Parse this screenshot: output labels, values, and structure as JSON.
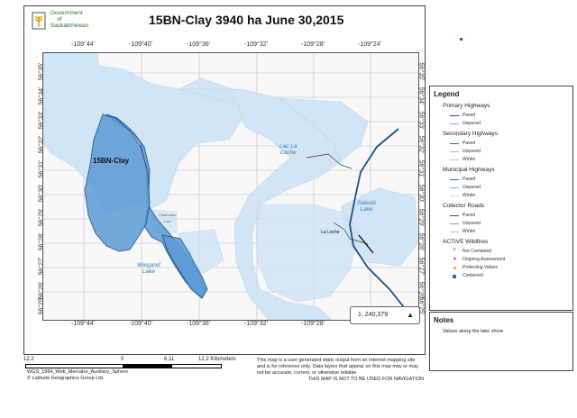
{
  "header": {
    "logo_text": "Government\n    of\nSaskatchewan",
    "map_title": "15BN-Clay  3940 ha June 30,2015"
  },
  "graticule": {
    "longitudes": [
      "-109°44'",
      "-109°40'",
      "-109°36'",
      "-109°32'",
      "-109°28'",
      "-109°24'"
    ],
    "longitudes_bottom": [
      "-109°44'",
      "-109°40'",
      "-109°36'",
      "-109°32'",
      "-109°28'"
    ],
    "latitudes": [
      "56°35'",
      "56°34'",
      "56°33'",
      "56°32'",
      "56°31'",
      "56°30'",
      "56°29'",
      "56°28'",
      "56°27'",
      "56°26'",
      "56°25'"
    ]
  },
  "map": {
    "fire_label": "15BN-Clay",
    "lake_labels": {
      "lac_la_loche": "Lac La\nLoche",
      "saleski": "Saleski\nLake",
      "wiegand": "Wiegand\nLake",
      "small": "Clearwater\nLake"
    },
    "town_label": "La Loche",
    "scale": "1: 240,379",
    "north": "N",
    "colors": {
      "water": "#cfe3f5",
      "fire_fill": "#5b9bd5",
      "fire_stroke": "#1f4e8c",
      "primary_highway": "#1f4e8c"
    }
  },
  "scalebar": {
    "ticks": [
      "12.2",
      "0",
      "6.11",
      "12.2 Kilometers"
    ]
  },
  "credits": {
    "line1": "WGS_1984_Web_Mercator_Auxiliary_Sphere",
    "line2": "© Latitude Geographics Group Ltd."
  },
  "disclaimer": {
    "text": "This map is a user generated static output from an Internet mapping site and is for reference only. Data layers that appear on this map may or may not be accurate, current, or otherwise reliable",
    "warning": "THIS MAP IS NOT TO BE USED FOR NAVIGATION"
  },
  "legend": {
    "title": "Legend",
    "groups": [
      {
        "name": "Primary Highways",
        "items": [
          {
            "label": "Paved",
            "color": "#1f4e8c"
          },
          {
            "label": "Unpaved",
            "color": "#8aa8cf"
          }
        ]
      },
      {
        "name": "Secondary Highways",
        "items": [
          {
            "label": "Paved",
            "color": "#2a7a8a"
          },
          {
            "label": "Unpaved",
            "color": "#88b9c2"
          },
          {
            "label": "Winter",
            "color": "#b9cbd6"
          }
        ]
      },
      {
        "name": "Municipal Highways",
        "items": [
          {
            "label": "Paved",
            "color": "#2e6da4"
          },
          {
            "label": "Unpaved",
            "color": "#8cb4d6"
          },
          {
            "label": "Winter",
            "color": "#c3d6e6"
          }
        ]
      },
      {
        "name": "Collector Roads",
        "items": [
          {
            "label": "Paved",
            "color": "#555555"
          },
          {
            "label": "Unpaved",
            "color": "#999999"
          },
          {
            "label": "Winter",
            "color": "#bbbbbb"
          }
        ]
      },
      {
        "name": "ACTIVE Wildfires",
        "items": [
          {
            "label": "Not Contained",
            "color": "#d03030",
            "symbol": "plus"
          },
          {
            "label": "Ongoing Assessment",
            "color": "#c03030",
            "symbol": "triangle"
          },
          {
            "label": "Protecting Values",
            "color": "#e0b020",
            "symbol": "dot"
          },
          {
            "label": "Contained",
            "color": "#2e6da4",
            "symbol": "square"
          }
        ]
      }
    ]
  },
  "notes": {
    "title": "Notes",
    "text": "Values along the lake shore"
  }
}
